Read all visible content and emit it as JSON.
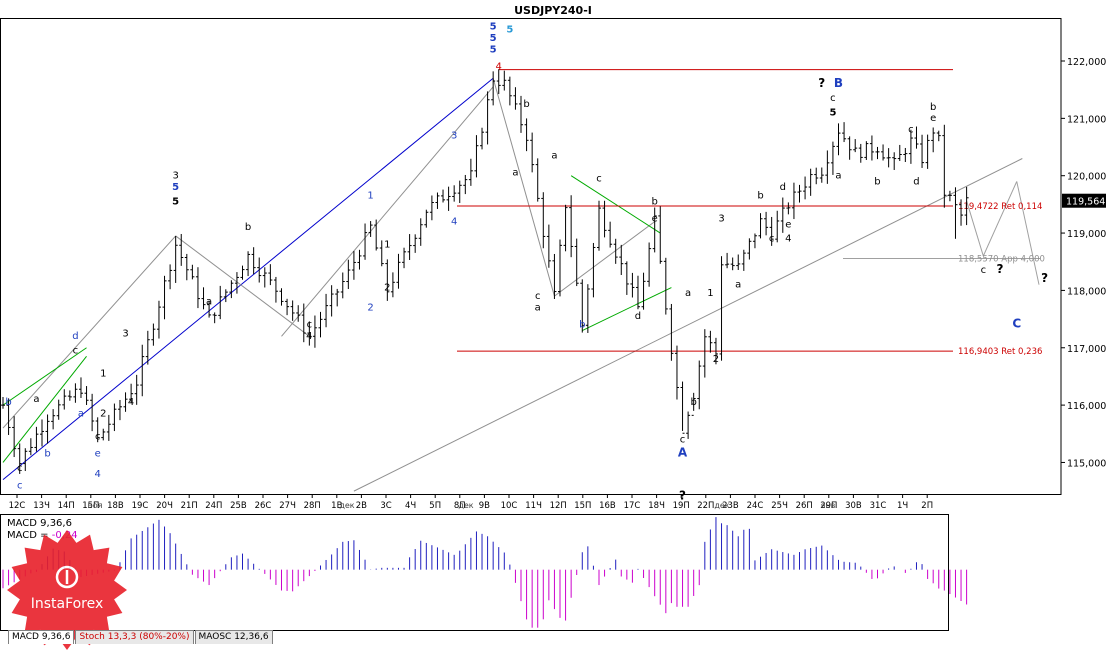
{
  "chart_data": {
    "type": "candlestick",
    "title": "USDJPY240-I",
    "price_axis": {
      "range": [
        114.45,
        122.75
      ],
      "ticks": [
        115,
        116,
        117,
        118,
        119,
        120,
        121,
        122
      ],
      "tick_labels": [
        "115,000",
        "116,000",
        "117,000",
        "118,000",
        "119,000",
        "120,000",
        "121,000",
        "122,000"
      ]
    },
    "current_price": {
      "value": 119.564,
      "label": "119,564"
    },
    "time_axis": {
      "labels": [
        "12С",
        "13Ч",
        "14П",
        "15П",
        "18В",
        "19С",
        "20Ч",
        "21П",
        "24П",
        "25В",
        "26С",
        "27Ч",
        "28П",
        "1В",
        "2В",
        "3С",
        "4Ч",
        "5П",
        "8П",
        "9В",
        "10С",
        "11Ч",
        "12П",
        "15П",
        "16В",
        "17С",
        "18Ч",
        "19П",
        "22П",
        "23В",
        "24С",
        "25Ч",
        "26П",
        "29П",
        "30В",
        "31С",
        "1Ч",
        "2П"
      ],
      "month_labels": [
        "ноя",
        "дек",
        "дек",
        "дек",
        "янв"
      ]
    },
    "levels": [
      {
        "value": 121.85,
        "label": ""
      },
      {
        "value": 119.4722,
        "label": "119,4722 Ret 0,114"
      },
      {
        "value": 118.557,
        "label": "118,5570 App 4,000"
      },
      {
        "value": 116.9403,
        "label": "116,9403 Ret 0,236"
      }
    ],
    "wave_labels": [
      {
        "t": "5",
        "i": 88,
        "p": 122.55,
        "c": "#1f3fbf"
      },
      {
        "t": "5",
        "i": 88,
        "p": 122.35,
        "c": "#1f3fbf"
      },
      {
        "t": "5",
        "i": 88,
        "p": 122.15,
        "c": "#1f3fbf"
      },
      {
        "t": "5",
        "i": 91,
        "p": 122.5,
        "c": "#2a9ad6"
      },
      {
        "t": "4",
        "i": 89,
        "p": 121.85,
        "c": "#cc0000"
      },
      {
        "t": "3",
        "i": 31,
        "p": 119.95,
        "c": "#000000"
      },
      {
        "t": "5",
        "i": 31,
        "p": 119.75,
        "c": "#1f3fbf"
      },
      {
        "t": "5",
        "i": 31,
        "p": 119.5,
        "c": "#000000"
      },
      {
        "t": "b",
        "i": 44,
        "p": 119.05,
        "c": "#000000"
      },
      {
        "t": "a",
        "i": 37,
        "p": 117.75,
        "c": "#000000"
      },
      {
        "t": "c",
        "i": 55,
        "p": 117.35,
        "c": "#000000"
      },
      {
        "t": "4",
        "i": 55,
        "p": 117.15,
        "c": "#000000"
      },
      {
        "t": "1",
        "i": 66,
        "p": 119.6,
        "c": "#1f3fbf"
      },
      {
        "t": "2",
        "i": 66,
        "p": 117.65,
        "c": "#1f3fbf"
      },
      {
        "t": "1",
        "i": 69,
        "p": 118.75,
        "c": "#000000"
      },
      {
        "t": "2",
        "i": 69,
        "p": 118.0,
        "c": "#000000"
      },
      {
        "t": "3",
        "i": 81,
        "p": 120.65,
        "c": "#1f3fbf"
      },
      {
        "t": "4",
        "i": 81,
        "p": 119.15,
        "c": "#1f3fbf"
      },
      {
        "t": "d",
        "i": 13,
        "p": 117.15,
        "c": "#1f3fbf"
      },
      {
        "t": "c",
        "i": 13,
        "p": 116.9,
        "c": "#000000"
      },
      {
        "t": "b",
        "i": 1,
        "p": 116.0,
        "c": "#1f3fbf"
      },
      {
        "t": "a",
        "i": 6,
        "p": 116.05,
        "c": "#000000"
      },
      {
        "t": "a",
        "i": 14,
        "p": 115.8,
        "c": "#1f3fbf"
      },
      {
        "t": "1",
        "i": 18,
        "p": 116.5,
        "c": "#000000"
      },
      {
        "t": "2",
        "i": 18,
        "p": 115.8,
        "c": "#000000"
      },
      {
        "t": "3",
        "i": 22,
        "p": 117.2,
        "c": "#000000"
      },
      {
        "t": "4",
        "i": 23,
        "p": 116.0,
        "c": "#000000"
      },
      {
        "t": "b",
        "i": 8,
        "p": 115.1,
        "c": "#1f3fbf"
      },
      {
        "t": "c",
        "i": 17,
        "p": 115.4,
        "c": "#000000"
      },
      {
        "t": "e",
        "i": 17,
        "p": 115.1,
        "c": "#1f3fbf"
      },
      {
        "t": "4",
        "i": 17,
        "p": 114.75,
        "c": "#1f3fbf"
      },
      {
        "t": "c",
        "i": 3,
        "p": 114.85,
        "c": "#000000"
      },
      {
        "t": "c",
        "i": 3,
        "p": 114.55,
        "c": "#1f3fbf"
      },
      {
        "t": "b",
        "i": 94,
        "p": 121.2,
        "c": "#000000"
      },
      {
        "t": "a",
        "i": 92,
        "p": 120.0,
        "c": "#000000"
      },
      {
        "t": "c",
        "i": 96,
        "p": 117.85,
        "c": "#000000"
      },
      {
        "t": "a",
        "i": 96,
        "p": 117.65,
        "c": "#000000"
      },
      {
        "t": "a",
        "i": 99,
        "p": 120.3,
        "c": "#000000"
      },
      {
        "t": "c",
        "i": 107,
        "p": 119.9,
        "c": "#000000"
      },
      {
        "t": "b",
        "i": 104,
        "p": 117.35,
        "c": "#1f3fbf"
      },
      {
        "t": "d",
        "i": 114,
        "p": 117.5,
        "c": "#000000"
      },
      {
        "t": "b",
        "i": 117,
        "p": 119.5,
        "c": "#000000"
      },
      {
        "t": "e",
        "i": 117,
        "p": 119.2,
        "c": "#000000"
      },
      {
        "t": "a",
        "i": 123,
        "p": 117.9,
        "c": "#000000"
      },
      {
        "t": "b",
        "i": 124,
        "p": 116.0,
        "c": "#000000"
      },
      {
        "t": "c",
        "i": 122,
        "p": 115.35,
        "c": "#000000"
      },
      {
        "t": "A",
        "i": 122,
        "p": 115.1,
        "c": "#1f3fbf"
      },
      {
        "t": "?",
        "i": 122,
        "p": 114.35,
        "c": "#000000"
      },
      {
        "t": "1",
        "i": 127,
        "p": 117.9,
        "c": "#000000"
      },
      {
        "t": "2",
        "i": 128,
        "p": 116.75,
        "c": "#000000"
      },
      {
        "t": "3",
        "i": 129,
        "p": 119.2,
        "c": "#000000"
      },
      {
        "t": "a",
        "i": 132,
        "p": 118.05,
        "c": "#000000"
      },
      {
        "t": "b",
        "i": 136,
        "p": 119.6,
        "c": "#000000"
      },
      {
        "t": "c",
        "i": 138,
        "p": 118.85,
        "c": "#000000"
      },
      {
        "t": "d",
        "i": 140,
        "p": 119.75,
        "c": "#000000"
      },
      {
        "t": "e",
        "i": 141,
        "p": 119.1,
        "c": "#000000"
      },
      {
        "t": "4",
        "i": 141,
        "p": 118.85,
        "c": "#000000"
      },
      {
        "t": "?",
        "i": 147,
        "p": 121.55,
        "c": "#000000"
      },
      {
        "t": "B",
        "i": 150,
        "p": 121.55,
        "c": "#1f3fbf"
      },
      {
        "t": "c",
        "i": 149,
        "p": 121.3,
        "c": "#000000"
      },
      {
        "t": "5",
        "i": 149,
        "p": 121.05,
        "c": "#000000"
      },
      {
        "t": "a",
        "i": 150,
        "p": 119.95,
        "c": "#000000"
      },
      {
        "t": "b",
        "i": 157,
        "p": 119.85,
        "c": "#000000"
      },
      {
        "t": "c",
        "i": 163,
        "p": 120.75,
        "c": "#000000"
      },
      {
        "t": "d",
        "i": 164,
        "p": 119.85,
        "c": "#000000"
      },
      {
        "t": "b",
        "i": 167,
        "p": 121.15,
        "c": "#000000"
      },
      {
        "t": "e",
        "i": 167,
        "p": 120.95,
        "c": "#000000"
      },
      {
        "t": "c",
        "i": 176,
        "p": 118.3,
        "c": "#000000"
      },
      {
        "t": "?",
        "i": 179,
        "p": 118.3,
        "c": "#000000"
      },
      {
        "t": "?",
        "i": 187,
        "p": 118.15,
        "c": "#000000"
      },
      {
        "t": "C",
        "i": 182,
        "p": 117.35,
        "c": "#1f3fbf"
      }
    ],
    "indicator": {
      "name": "MACD 9,36,6",
      "label_parts": [
        "MACD 9,36,6",
        "MACD = ",
        "-0,24"
      ],
      "value_color": "#cc00cc",
      "range": [
        -0.52,
        0.48
      ],
      "positive_color": "#1f1fbf",
      "negative_color": "#cc00cc"
    },
    "tabs": [
      {
        "label": "MACD 9,36,6",
        "active": true
      },
      {
        "label": "Stoch 13,3,3 (80%-20%)",
        "active": false
      },
      {
        "label": "MAOSC 12,36,6",
        "active": false
      }
    ],
    "watermark_text": "InstaForex",
    "grid": false,
    "legend": "none"
  }
}
